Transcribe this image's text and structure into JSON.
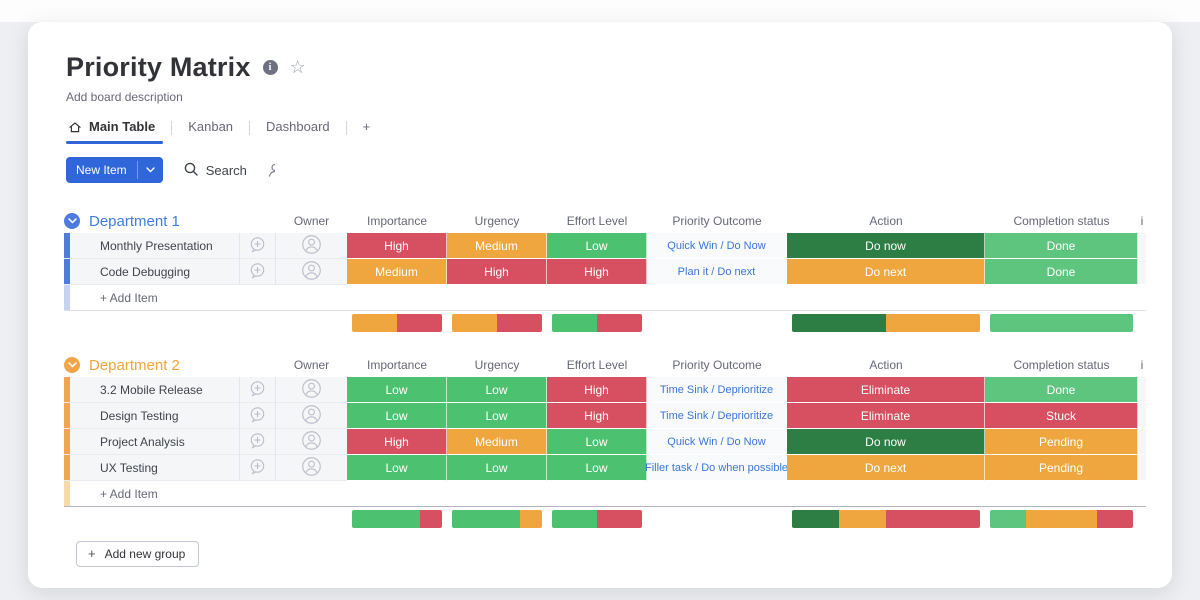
{
  "palette": {
    "red": "#d65062",
    "orange": "#f0a63e",
    "green": "#4cc16f",
    "done_green": "#5ec57f",
    "dark_green": "#2c7e45",
    "link_blue": "#3a77d8",
    "accent": "#2f66d9"
  },
  "board": {
    "title": "Priority Matrix",
    "description": "Add board description",
    "tabs": [
      {
        "label": "Main Table",
        "active": true,
        "icon": "home-icon"
      },
      {
        "label": "Kanban",
        "active": false
      },
      {
        "label": "Dashboard",
        "active": false
      },
      {
        "label": "+",
        "active": false
      }
    ],
    "toolbar": {
      "new_item_label": "New Item",
      "search_label": "Search"
    }
  },
  "columns": [
    "Owner",
    "Importance",
    "Urgency",
    "Effort Level",
    "Priority Outcome",
    "Action",
    "Completion status"
  ],
  "partial_column": "i",
  "groups": [
    {
      "name": "Department 1",
      "label_color": "#3f7de0",
      "bar_color": "#4f7bdf",
      "faded_bar_color": "#c7d3f0",
      "add_item_label": "+ Add Item",
      "items": [
        {
          "name": "Monthly Presentation",
          "importance": {
            "label": "High",
            "color": "red"
          },
          "urgency": {
            "label": "Medium",
            "color": "orange"
          },
          "effort": {
            "label": "Low",
            "color": "green"
          },
          "outcome": "Quick Win / Do Now",
          "action": {
            "label": "Do now",
            "color": "dark_green"
          },
          "completion": {
            "label": "Done",
            "color": "done_green"
          }
        },
        {
          "name": "Code Debugging",
          "importance": {
            "label": "Medium",
            "color": "orange"
          },
          "urgency": {
            "label": "High",
            "color": "red"
          },
          "effort": {
            "label": "High",
            "color": "red"
          },
          "outcome": "Plan it / Do next",
          "action": {
            "label": "Do next",
            "color": "orange"
          },
          "completion": {
            "label": "Done",
            "color": "done_green"
          }
        }
      ],
      "summary": {
        "importance": [
          {
            "color": "orange",
            "pct": 50
          },
          {
            "color": "red",
            "pct": 50
          }
        ],
        "urgency": [
          {
            "color": "orange",
            "pct": 50
          },
          {
            "color": "red",
            "pct": 50
          }
        ],
        "effort": [
          {
            "color": "green",
            "pct": 50
          },
          {
            "color": "red",
            "pct": 50
          }
        ],
        "action": [
          {
            "color": "dark_green",
            "pct": 50
          },
          {
            "color": "orange",
            "pct": 50
          }
        ],
        "completion": [
          {
            "color": "done_green",
            "pct": 100
          }
        ]
      }
    },
    {
      "name": "Department 2",
      "label_color": "#f0a43b",
      "bar_color": "#f2a54a",
      "faded_bar_color": "#f8d9a9",
      "add_item_label": "+ Add Item",
      "items": [
        {
          "name": "3.2 Mobile Release",
          "importance": {
            "label": "Low",
            "color": "green"
          },
          "urgency": {
            "label": "Low",
            "color": "green"
          },
          "effort": {
            "label": "High",
            "color": "red"
          },
          "outcome": "Time Sink / Deprioritize",
          "action": {
            "label": "Eliminate",
            "color": "red"
          },
          "completion": {
            "label": "Done",
            "color": "done_green"
          }
        },
        {
          "name": "Design Testing",
          "importance": {
            "label": "Low",
            "color": "green"
          },
          "urgency": {
            "label": "Low",
            "color": "green"
          },
          "effort": {
            "label": "High",
            "color": "red"
          },
          "outcome": "Time Sink / Deprioritize",
          "action": {
            "label": "Eliminate",
            "color": "red"
          },
          "completion": {
            "label": "Stuck",
            "color": "red"
          }
        },
        {
          "name": "Project Analysis",
          "importance": {
            "label": "High",
            "color": "red"
          },
          "urgency": {
            "label": "Medium",
            "color": "orange"
          },
          "effort": {
            "label": "Low",
            "color": "green"
          },
          "outcome": "Quick Win / Do Now",
          "action": {
            "label": "Do now",
            "color": "dark_green"
          },
          "completion": {
            "label": "Pending",
            "color": "orange"
          }
        },
        {
          "name": "UX Testing",
          "importance": {
            "label": "Low",
            "color": "green"
          },
          "urgency": {
            "label": "Low",
            "color": "green"
          },
          "effort": {
            "label": "Low",
            "color": "green"
          },
          "outcome": "Filler task / Do when possible",
          "action": {
            "label": "Do next",
            "color": "orange"
          },
          "completion": {
            "label": "Pending",
            "color": "orange"
          }
        }
      ],
      "summary": {
        "importance": [
          {
            "color": "green",
            "pct": 75
          },
          {
            "color": "red",
            "pct": 25
          }
        ],
        "urgency": [
          {
            "color": "green",
            "pct": 75
          },
          {
            "color": "orange",
            "pct": 25
          }
        ],
        "effort": [
          {
            "color": "green",
            "pct": 50
          },
          {
            "color": "red",
            "pct": 50
          }
        ],
        "action": [
          {
            "color": "dark_green",
            "pct": 25
          },
          {
            "color": "orange",
            "pct": 25
          },
          {
            "color": "red",
            "pct": 50
          }
        ],
        "completion": [
          {
            "color": "done_green",
            "pct": 25
          },
          {
            "color": "orange",
            "pct": 50
          },
          {
            "color": "red",
            "pct": 25
          }
        ]
      }
    }
  ],
  "footer": {
    "add_group_label": "Add new group",
    "plus": "+"
  }
}
